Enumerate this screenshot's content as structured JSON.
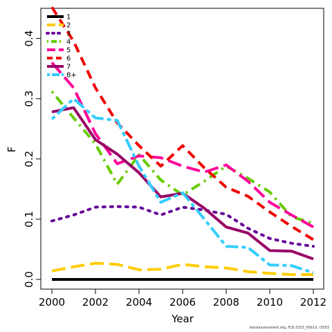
{
  "chart_data": {
    "type": "line",
    "title": "",
    "xlabel": "Year",
    "ylabel": "F",
    "xlim": [
      2000,
      2012
    ],
    "ylim": [
      0.0,
      0.45
    ],
    "x_ticks": [
      2000,
      2002,
      2004,
      2006,
      2008,
      2010,
      2012
    ],
    "y_ticks": [
      0.0,
      0.1,
      0.2,
      0.3,
      0.4
    ],
    "y_tick_labels": [
      "0.0",
      "0.1",
      "0.2",
      "0.3",
      "0.4"
    ],
    "legend_position": "top-left",
    "x": [
      2000,
      2001,
      2002,
      2003,
      2004,
      2005,
      2006,
      2007,
      2008,
      2009,
      2010,
      2011,
      2012
    ],
    "series": [
      {
        "name": "1",
        "color": "#000000",
        "dash": "solid",
        "values": [
          0.0,
          0.0,
          0.0,
          0.0,
          0.0,
          0.0,
          0.0,
          0.0,
          0.0,
          0.0,
          0.0,
          0.0,
          0.0
        ]
      },
      {
        "name": "2",
        "color": "#FFCC00",
        "dash": "long",
        "values": [
          0.014,
          0.021,
          0.027,
          0.025,
          0.016,
          0.017,
          0.025,
          0.021,
          0.019,
          0.013,
          0.01,
          0.008,
          0.008
        ]
      },
      {
        "name": "3",
        "color": "#660099",
        "dash": "dotted",
        "values": [
          0.097,
          0.107,
          0.12,
          0.121,
          0.12,
          0.107,
          0.12,
          0.115,
          0.108,
          0.085,
          0.068,
          0.06,
          0.055
        ]
      },
      {
        "name": "4",
        "color": "#66CC00",
        "dash": "dotdash",
        "values": [
          0.312,
          0.268,
          0.225,
          0.158,
          0.207,
          0.165,
          0.14,
          0.163,
          0.188,
          0.168,
          0.145,
          0.104,
          0.093
        ]
      },
      {
        "name": "5",
        "color": "#FF0099",
        "dash": "long",
        "values": [
          0.36,
          0.318,
          0.242,
          0.192,
          0.205,
          0.202,
          0.188,
          0.178,
          0.19,
          0.163,
          0.128,
          0.107,
          0.087
        ]
      },
      {
        "name": "6",
        "color": "#EE0000",
        "dash": "dashed",
        "values": [
          0.452,
          0.395,
          0.318,
          0.26,
          0.222,
          0.188,
          0.222,
          0.185,
          0.153,
          0.138,
          0.112,
          0.088,
          0.066
        ]
      },
      {
        "name": "7",
        "color": "#990066",
        "dash": "solid",
        "values": [
          0.278,
          0.285,
          0.232,
          0.208,
          0.177,
          0.137,
          0.143,
          0.118,
          0.087,
          0.077,
          0.048,
          0.047,
          0.034
        ]
      },
      {
        "name": "8+",
        "color": "#33CCFF",
        "dash": "twodash",
        "values": [
          0.266,
          0.3,
          0.268,
          0.264,
          0.188,
          0.128,
          0.144,
          0.1,
          0.055,
          0.053,
          0.024,
          0.023,
          0.011
        ]
      }
    ]
  },
  "footer_text": "stockassessment.org, FLE-2223_00b13, r3253"
}
